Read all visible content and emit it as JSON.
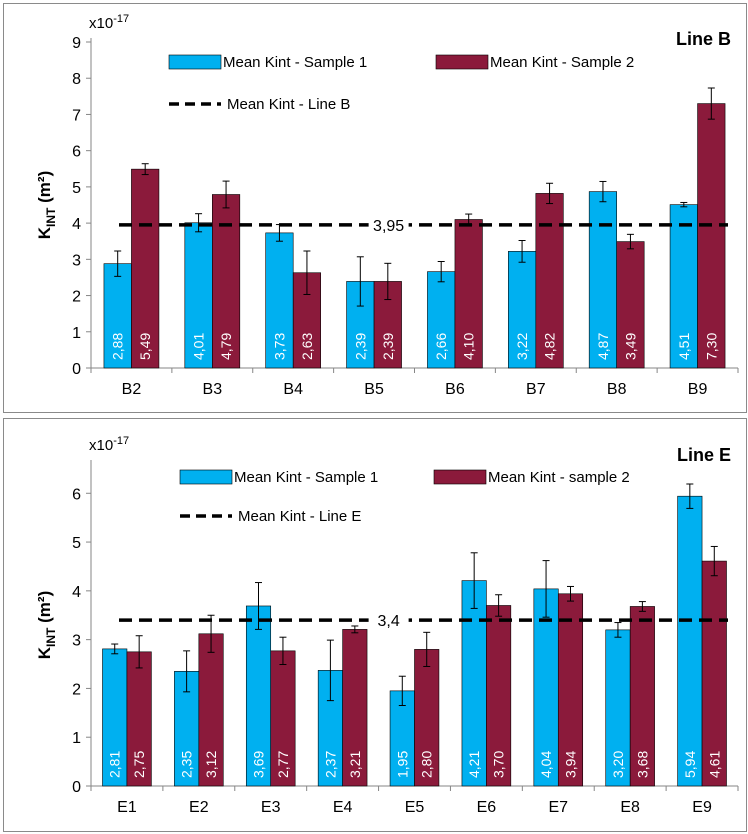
{
  "chart_data": [
    {
      "type": "bar",
      "title": "Line B",
      "ylabel_main": "K",
      "ylabel_sub": "INT",
      "ylabel_unit": " (m²)",
      "multiplier": "x10",
      "multiplier_exp": "-17",
      "ylim": [
        0,
        9
      ],
      "yticks": [
        "0",
        "1",
        "2",
        "3",
        "4",
        "5",
        "6",
        "7",
        "8",
        "9"
      ],
      "categories": [
        "B2",
        "B3",
        "B4",
        "B5",
        "B6",
        "B7",
        "B8",
        "B9"
      ],
      "series": [
        {
          "name": "Mean Kint - Sample 1",
          "color": "#00b0f0",
          "values": [
            2.88,
            4.01,
            3.73,
            2.39,
            2.66,
            3.22,
            4.87,
            4.51
          ],
          "labels": [
            "2,88",
            "4,01",
            "3,73",
            "2,39",
            "2,66",
            "3,22",
            "4,87",
            "4,51"
          ],
          "errors": [
            0.35,
            0.25,
            0.23,
            0.68,
            0.28,
            0.3,
            0.28,
            0.06
          ]
        },
        {
          "name": "Mean Kint - Sample 2",
          "color": "#8b1a3b",
          "values": [
            5.49,
            4.79,
            2.63,
            2.39,
            4.1,
            4.82,
            3.49,
            7.3
          ],
          "labels": [
            "5,49",
            "4,79",
            "2,63",
            "2,39",
            "4,10",
            "4,82",
            "3,49",
            "7,30"
          ],
          "errors": [
            0.15,
            0.37,
            0.6,
            0.5,
            0.15,
            0.28,
            0.2,
            0.43
          ]
        }
      ],
      "mean_line": {
        "name": "Mean Kint - Line B",
        "value": 3.95,
        "label": "3,95"
      }
    },
    {
      "type": "bar",
      "title": "Line E",
      "ylabel_main": "K",
      "ylabel_sub": "INT",
      "ylabel_unit": " (m²)",
      "multiplier": "x10",
      "multiplier_exp": "-17",
      "ylim": [
        0,
        6.6
      ],
      "yticks": [
        "0",
        "1",
        "2",
        "3",
        "4",
        "5",
        "6"
      ],
      "categories": [
        "E1",
        "E2",
        "E3",
        "E4",
        "E5",
        "E6",
        "E7",
        "E8",
        "E9"
      ],
      "series": [
        {
          "name": "Mean Kint - Sample 1",
          "color": "#00b0f0",
          "values": [
            2.81,
            2.35,
            3.69,
            2.37,
            1.95,
            4.21,
            4.04,
            3.2,
            5.94
          ],
          "labels": [
            "2,81",
            "2,35",
            "3,69",
            "2,37",
            "1,95",
            "4,21",
            "4,04",
            "3,20",
            "5,94"
          ],
          "errors": [
            0.1,
            0.42,
            0.48,
            0.62,
            0.3,
            0.57,
            0.58,
            0.15,
            0.25
          ]
        },
        {
          "name": "Mean Kint - sample 2",
          "color": "#8b1a3b",
          "values": [
            2.75,
            3.12,
            2.77,
            3.21,
            2.8,
            3.7,
            3.94,
            3.68,
            4.61
          ],
          "labels": [
            "2,75",
            "3,12",
            "2,77",
            "3,21",
            "2,80",
            "3,70",
            "3,94",
            "3,68",
            "4,61"
          ],
          "errors": [
            0.33,
            0.38,
            0.28,
            0.07,
            0.35,
            0.22,
            0.15,
            0.1,
            0.3
          ]
        }
      ],
      "mean_line": {
        "name": "Mean Kint - Line E",
        "value": 3.4,
        "label": "3,4"
      }
    }
  ]
}
